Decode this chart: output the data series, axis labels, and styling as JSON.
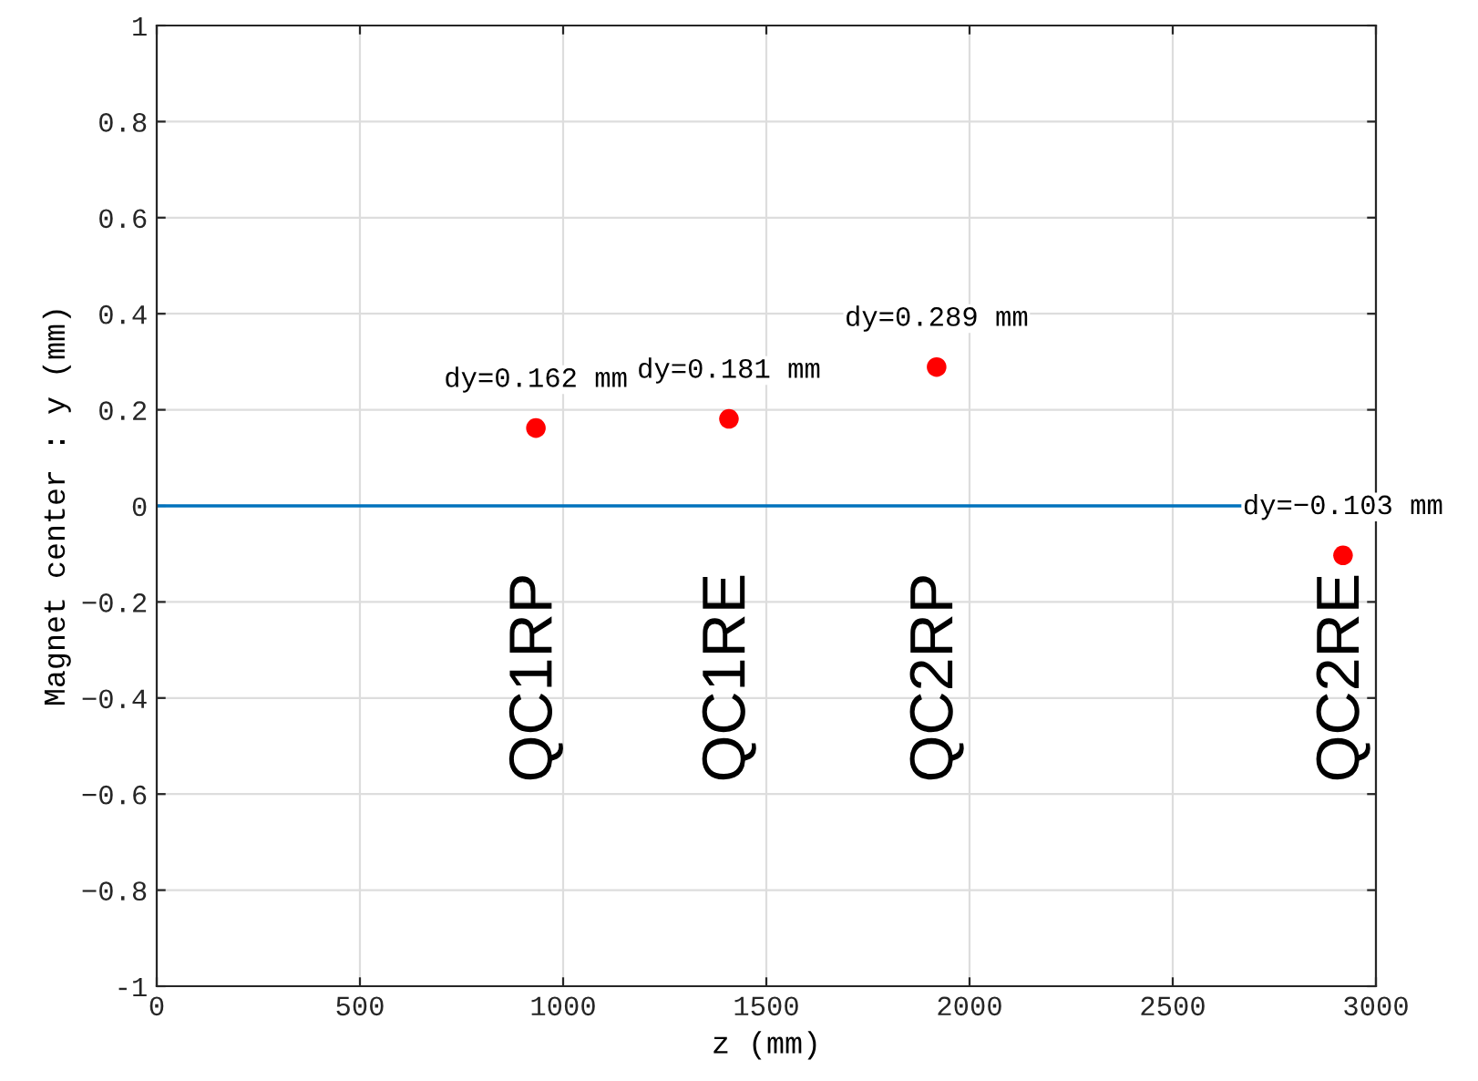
{
  "chart_data": {
    "type": "scatter",
    "xlabel": "z (mm)",
    "ylabel": "Magnet center : y (mm)",
    "x": [
      933,
      1408,
      1919,
      2919
    ],
    "series": [
      {
        "color": "#ff0000",
        "values": [
          0.162,
          0.181,
          0.289,
          -0.103
        ]
      }
    ],
    "marker": "circle",
    "xlim": [
      0,
      3000
    ],
    "ylim": [
      -1,
      1
    ],
    "xticks": [
      0,
      500,
      1000,
      1500,
      2000,
      2500,
      3000
    ],
    "yticks": [
      -1,
      {
        "value": -0.8,
        "label": "−0.8"
      },
      {
        "value": -0.6,
        "label": "−0.6"
      },
      {
        "value": -0.4,
        "label": "−0.4"
      },
      {
        "value": -0.2,
        "label": "−0.2"
      },
      0,
      0.2,
      0.4,
      0.6,
      0.8,
      1
    ],
    "grid": true,
    "ref_lines": [
      {
        "axis": "y",
        "value": 0,
        "color": "#0072bd"
      }
    ],
    "annotations": [
      {
        "text": "dy=0.162 mm",
        "x": 933,
        "y": 0.162
      },
      {
        "text": "dy=0.181 mm",
        "x": 1408,
        "y": 0.181
      },
      {
        "text": "dy=0.289 mm",
        "x": 1919,
        "y": 0.289
      },
      {
        "text": "dy=−0.103 mm",
        "x": 2919,
        "y": -0.103
      },
      "QC1RP",
      "QC1RE",
      "QC2RP",
      "QC2RE"
    ]
  }
}
